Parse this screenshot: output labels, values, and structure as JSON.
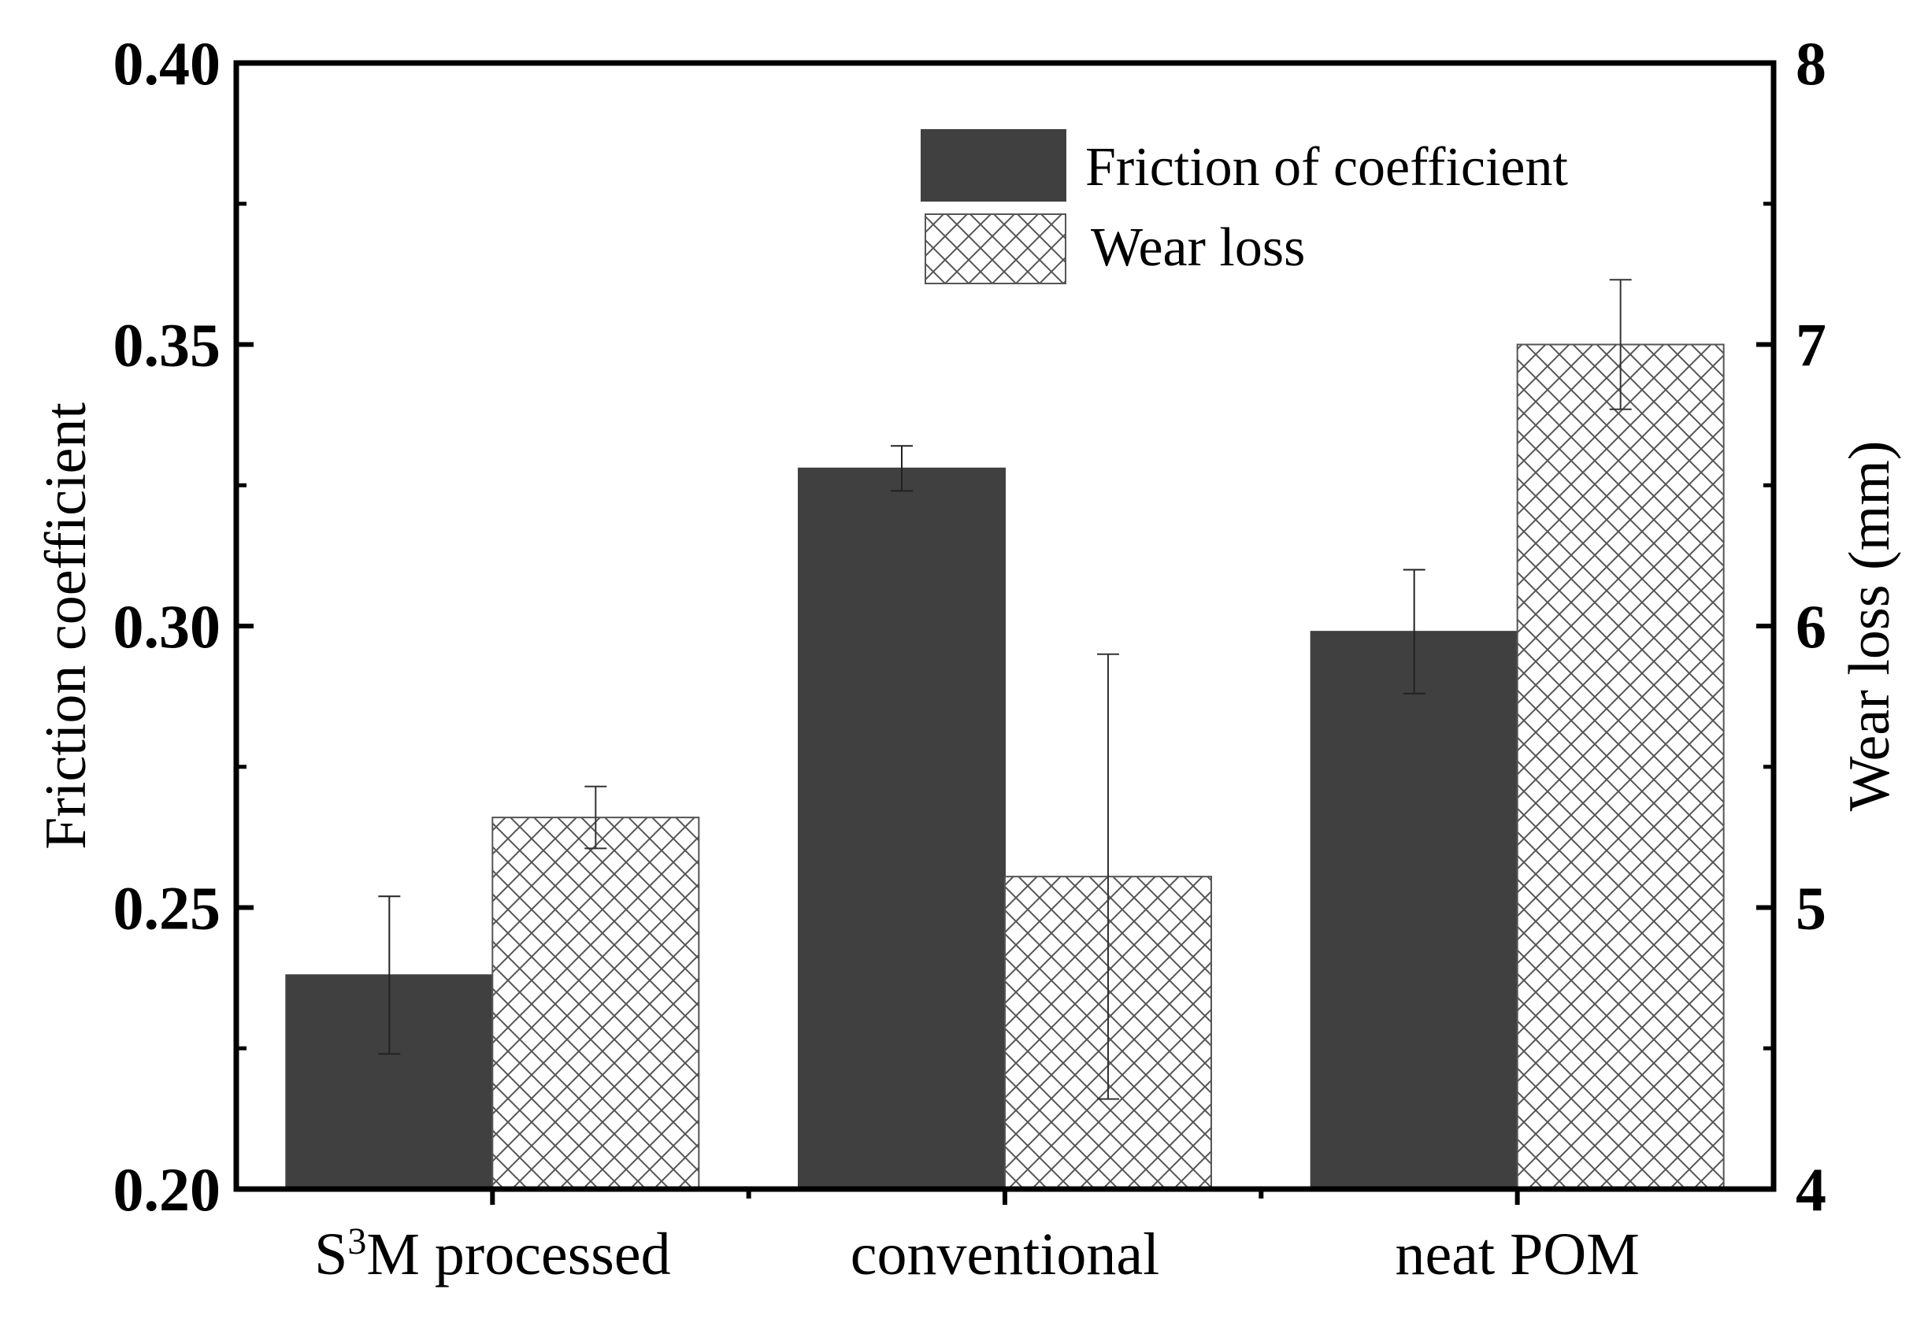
{
  "chart_data": {
    "type": "bar",
    "categories": [
      "S3M processed",
      "conventional",
      "neat POM"
    ],
    "category_display": [
      {
        "main": "S",
        "sup": "3",
        "rest": "M processed"
      },
      {
        "main": "conventional",
        "sup": "",
        "rest": ""
      },
      {
        "main": "neat POM",
        "sup": "",
        "rest": ""
      }
    ],
    "series": [
      {
        "name": "Friction of coefficient",
        "axis": "left",
        "pattern": "solid",
        "color": "#404040",
        "values": [
          0.238,
          0.328,
          0.299
        ],
        "errors": [
          0.014,
          0.004,
          0.011
        ]
      },
      {
        "name": "Wear loss",
        "axis": "right",
        "pattern": "crosshatch",
        "color": "#ffffff",
        "values": [
          5.32,
          5.11,
          7.0
        ],
        "errors": [
          0.11,
          0.79,
          0.23
        ]
      }
    ],
    "left_axis": {
      "label": "Friction coefficient",
      "ylim": [
        0.2,
        0.4
      ],
      "ticks": [
        "0.20",
        "0.25",
        "0.30",
        "0.35",
        "0.40"
      ],
      "tick_values": [
        0.2,
        0.25,
        0.3,
        0.35,
        0.4
      ]
    },
    "right_axis": {
      "label": "Wear loss (mm)",
      "ylim": [
        4,
        8
      ],
      "ticks": [
        "4",
        "5",
        "6",
        "7",
        "8"
      ],
      "tick_values": [
        4,
        5,
        6,
        7,
        8
      ]
    },
    "xlabel": "",
    "title": "",
    "legend_position": "top-right",
    "grid": false
  }
}
